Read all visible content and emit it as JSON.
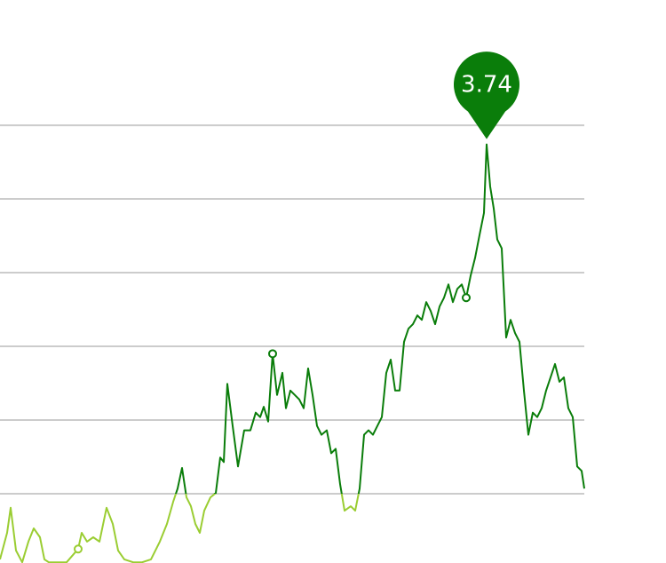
{
  "chart_data": {
    "type": "line",
    "xlim": [
      0,
      658
    ],
    "ylim": [
      -1.94,
      5.7
    ],
    "yticks": [
      4,
      3,
      2,
      1,
      0,
      -1
    ],
    "grid": true,
    "x": [
      0,
      8,
      12,
      18,
      25,
      32,
      38,
      45,
      50,
      55,
      65,
      75,
      88,
      92,
      98,
      105,
      112,
      120,
      127,
      133,
      140,
      150,
      160,
      170,
      180,
      188,
      195,
      200,
      205,
      210,
      215,
      220,
      225,
      230,
      237,
      243,
      248,
      252,
      256,
      262,
      268,
      275,
      282,
      288,
      293,
      297,
      302,
      307,
      312,
      318,
      322,
      327,
      332,
      337,
      342,
      347,
      352,
      357,
      362,
      368,
      373,
      378,
      383,
      388,
      395,
      400,
      405,
      410,
      415,
      420,
      425,
      430,
      435,
      440,
      445,
      450,
      455,
      460,
      465,
      470,
      475,
      480,
      485,
      490,
      495,
      500,
      505,
      510,
      515,
      520,
      525,
      530,
      535,
      540,
      545,
      548,
      552,
      556,
      560,
      565,
      570,
      575,
      580,
      585,
      590,
      595,
      600,
      605,
      610,
      615,
      620,
      625,
      630,
      635,
      640,
      645,
      650,
      655,
      658
    ],
    "series": [
      {
        "color": "#0a7d0a",
        "low_color": "#9acd32",
        "values": [
          -1.89,
          -1.53,
          -1.19,
          -1.77,
          -1.93,
          -1.65,
          -1.47,
          -1.59,
          -1.89,
          -1.93,
          -1.93,
          -1.93,
          -1.75,
          -1.53,
          -1.65,
          -1.59,
          -1.65,
          -1.19,
          -1.41,
          -1.77,
          -1.89,
          -1.93,
          -1.93,
          -1.89,
          -1.65,
          -1.41,
          -1.11,
          -0.93,
          -0.65,
          -1.05,
          -1.17,
          -1.41,
          -1.53,
          -1.23,
          -1.05,
          -0.99,
          -0.51,
          -0.57,
          0.49,
          -0.08,
          -0.63,
          -0.14,
          -0.14,
          0.1,
          0.04,
          0.18,
          -0.02,
          0.9,
          0.34,
          0.64,
          0.16,
          0.4,
          0.34,
          0.28,
          0.16,
          0.7,
          0.34,
          -0.08,
          -0.2,
          -0.14,
          -0.45,
          -0.39,
          -0.87,
          -1.23,
          -1.17,
          -1.23,
          -0.93,
          -0.2,
          -0.14,
          -0.2,
          -0.08,
          0.04,
          0.64,
          0.82,
          0.4,
          0.4,
          1.06,
          1.24,
          1.3,
          1.42,
          1.36,
          1.6,
          1.48,
          1.3,
          1.54,
          1.66,
          1.84,
          1.6,
          1.78,
          1.84,
          1.66,
          1.96,
          2.2,
          2.51,
          2.81,
          3.74,
          3.17,
          2.87,
          2.45,
          2.33,
          1.12,
          1.36,
          1.18,
          1.06,
          0.4,
          -0.2,
          0.1,
          0.04,
          0.16,
          0.4,
          0.58,
          0.76,
          0.52,
          0.58,
          0.16,
          0.04,
          -0.63,
          -0.69,
          -0.93
        ],
        "marked_x": [
          88,
          307,
          525
        ]
      }
    ],
    "annotation": {
      "text": "3.74",
      "color": "#0a7d0a"
    }
  }
}
